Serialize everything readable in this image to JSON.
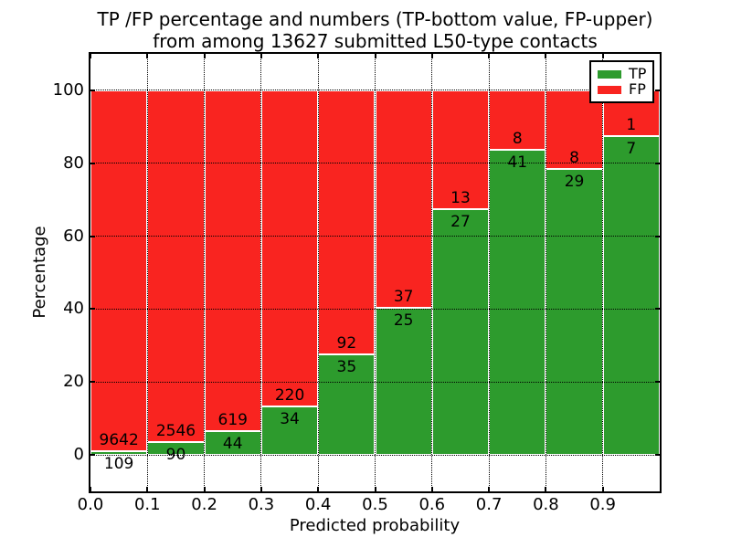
{
  "figure": {
    "title_line1": "TP /FP percentage and numbers (TP-bottom value, FP-upper)",
    "title_line2": "from among 13627 submitted L50-type contacts"
  },
  "chart_data": {
    "type": "bar",
    "stacked": true,
    "title": "TP /FP percentage and numbers (TP-bottom value, FP-upper) from among 13627 submitted L50-type contacts",
    "xlabel": "Predicted probability",
    "ylabel": "Percentage",
    "xlim": [
      0.0,
      1.0
    ],
    "ylim": [
      -10,
      110
    ],
    "grid": "dotted black, both axes",
    "legend_position": "upper right",
    "x_tick_labels": [
      "0.0",
      "0.1",
      "0.2",
      "0.3",
      "0.4",
      "0.5",
      "0.6",
      "0.7",
      "0.8",
      "0.9"
    ],
    "y_ticks": [
      0,
      20,
      40,
      60,
      80,
      100
    ],
    "y_tick_labels": [
      "0",
      "20",
      "40",
      "60",
      "80",
      "100"
    ],
    "bin_left_edges": [
      0.0,
      0.1,
      0.2,
      0.3,
      0.4,
      0.5,
      0.6,
      0.7,
      0.8,
      0.9
    ],
    "bin_width": 0.1,
    "total_contacts": 13627,
    "series": [
      {
        "name": "TP",
        "color": "#2d9b2d",
        "counts": [
          109,
          90,
          44,
          34,
          35,
          25,
          27,
          41,
          29,
          7
        ]
      },
      {
        "name": "FP",
        "color": "#f92420",
        "counts": [
          9642,
          2546,
          619,
          220,
          92,
          37,
          13,
          8,
          8,
          1
        ]
      }
    ],
    "tp_percent": [
      1.12,
      3.41,
      6.64,
      13.39,
      27.56,
      40.32,
      67.5,
      83.67,
      78.38,
      87.5
    ],
    "bar_value_labels": "FP count printed above stack boundary, TP count printed below it"
  },
  "legend": {
    "items": [
      {
        "label": "TP"
      },
      {
        "label": "FP"
      }
    ]
  }
}
